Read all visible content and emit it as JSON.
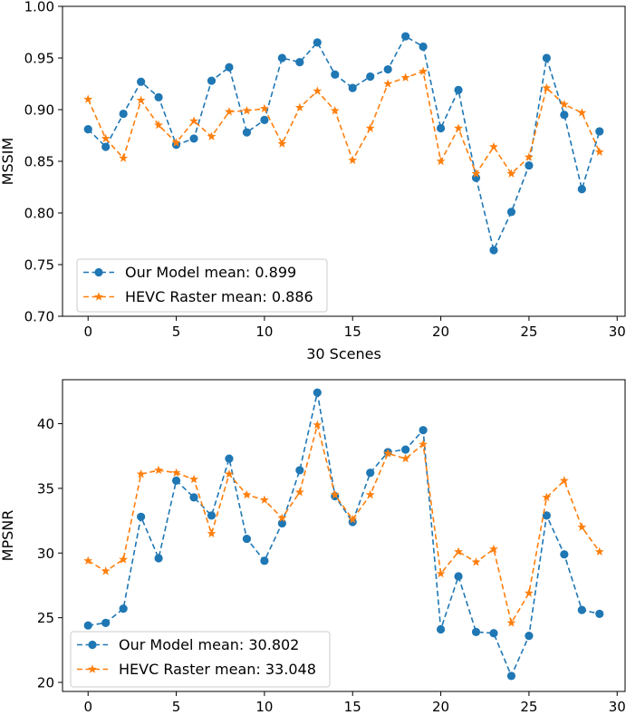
{
  "chart_data": [
    {
      "type": "line",
      "title": "",
      "xlabel": "30 Scenes",
      "ylabel": "MSSIM",
      "xlim": [
        -1.45,
        30.45
      ],
      "ylim": [
        0.7,
        1.0
      ],
      "xticks": [
        0,
        5,
        10,
        15,
        20,
        25,
        30
      ],
      "yticks": [
        0.7,
        0.75,
        0.8,
        0.85,
        0.9,
        0.95,
        1.0
      ],
      "ytick_labels": [
        "0.70",
        "0.75",
        "0.80",
        "0.85",
        "0.90",
        "0.95",
        "1.00"
      ],
      "x": [
        0,
        1,
        2,
        3,
        4,
        5,
        6,
        7,
        8,
        9,
        10,
        11,
        12,
        13,
        14,
        15,
        16,
        17,
        18,
        19,
        20,
        21,
        22,
        23,
        24,
        25,
        26,
        27,
        28,
        29
      ],
      "legend_position": "lower-left",
      "series": [
        {
          "name": "Our Model mean: 0.899",
          "color": "#1f77b4",
          "marker": "circle",
          "values": [
            0.881,
            0.864,
            0.896,
            0.927,
            0.912,
            0.866,
            0.872,
            0.928,
            0.941,
            0.878,
            0.89,
            0.95,
            0.946,
            0.965,
            0.934,
            0.921,
            0.932,
            0.939,
            0.971,
            0.961,
            0.882,
            0.919,
            0.834,
            0.764,
            0.801,
            0.846,
            0.95,
            0.895,
            0.823,
            0.879
          ]
        },
        {
          "name": "HEVC Raster mean: 0.886",
          "color": "#ff7f0e",
          "marker": "star",
          "values": [
            0.91,
            0.872,
            0.853,
            0.909,
            0.885,
            0.868,
            0.889,
            0.874,
            0.898,
            0.899,
            0.901,
            0.867,
            0.902,
            0.918,
            0.899,
            0.851,
            0.882,
            0.925,
            0.931,
            0.937,
            0.85,
            0.882,
            0.838,
            0.864,
            0.838,
            0.854,
            0.921,
            0.905,
            0.897,
            0.859
          ]
        }
      ]
    },
    {
      "type": "line",
      "title": "",
      "xlabel": "",
      "ylabel": "MPSNR",
      "xlim": [
        -1.45,
        30.45
      ],
      "ylim": [
        19.3,
        43.4
      ],
      "xticks": [
        0,
        5,
        10,
        15,
        20,
        25,
        30
      ],
      "yticks": [
        20,
        25,
        30,
        35,
        40
      ],
      "ytick_labels": [
        "20",
        "25",
        "30",
        "35",
        "40"
      ],
      "x": [
        0,
        1,
        2,
        3,
        4,
        5,
        6,
        7,
        8,
        9,
        10,
        11,
        12,
        13,
        14,
        15,
        16,
        17,
        18,
        19,
        20,
        21,
        22,
        23,
        24,
        25,
        26,
        27,
        28,
        29
      ],
      "legend_position": "lower-left",
      "series": [
        {
          "name": "Our Model mean: 30.802",
          "color": "#1f77b4",
          "marker": "circle",
          "values": [
            24.4,
            24.6,
            25.7,
            32.8,
            29.6,
            35.6,
            34.3,
            32.9,
            37.3,
            31.1,
            29.4,
            32.3,
            36.4,
            42.4,
            34.4,
            32.4,
            36.2,
            37.8,
            38.0,
            39.5,
            24.1,
            28.2,
            23.9,
            23.8,
            20.5,
            23.6,
            32.9,
            29.9,
            25.6,
            25.3
          ]
        },
        {
          "name": "HEVC Raster mean: 33.048",
          "color": "#ff7f0e",
          "marker": "star",
          "values": [
            29.4,
            28.6,
            29.5,
            36.1,
            36.4,
            36.2,
            35.7,
            31.5,
            36.1,
            34.5,
            34.1,
            32.7,
            34.7,
            39.9,
            34.5,
            32.6,
            34.5,
            37.7,
            37.3,
            38.4,
            28.4,
            30.1,
            29.3,
            30.3,
            24.6,
            26.9,
            34.3,
            35.6,
            32.0,
            30.1
          ]
        }
      ]
    }
  ]
}
